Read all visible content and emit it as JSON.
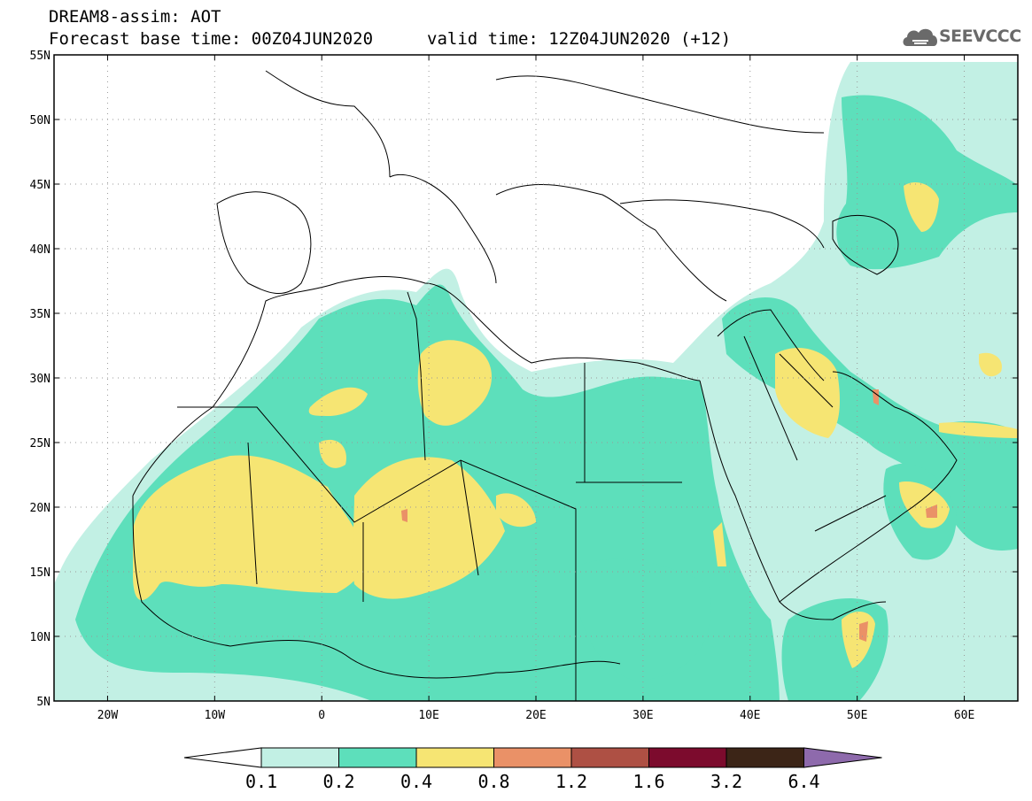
{
  "header": {
    "title": "DREAM8-assim: AOT",
    "base_time": "Forecast base time: 00Z04JUN2020",
    "valid_time": "valid time: 12Z04JUN2020 (+12)"
  },
  "logo": {
    "text": "SEEVCCC",
    "icon": "cloud-icon"
  },
  "map": {
    "lon_range": [
      -25,
      65
    ],
    "lat_range": [
      5,
      55
    ],
    "lat_ticks": [
      {
        "v": 55,
        "label": "55N"
      },
      {
        "v": 50,
        "label": "50N"
      },
      {
        "v": 45,
        "label": "45N"
      },
      {
        "v": 40,
        "label": "40N"
      },
      {
        "v": 35,
        "label": "35N"
      },
      {
        "v": 30,
        "label": "30N"
      },
      {
        "v": 25,
        "label": "25N"
      },
      {
        "v": 20,
        "label": "20N"
      },
      {
        "v": 15,
        "label": "15N"
      },
      {
        "v": 10,
        "label": "10N"
      },
      {
        "v": 5,
        "label": "5N"
      }
    ],
    "lon_ticks": [
      {
        "v": -20,
        "label": "20W"
      },
      {
        "v": -10,
        "label": "10W"
      },
      {
        "v": 0,
        "label": "0"
      },
      {
        "v": 10,
        "label": "10E"
      },
      {
        "v": 20,
        "label": "20E"
      },
      {
        "v": 30,
        "label": "30E"
      },
      {
        "v": 40,
        "label": "40E"
      },
      {
        "v": 50,
        "label": "50E"
      },
      {
        "v": 60,
        "label": "60E"
      }
    ],
    "grid": true
  },
  "colorbar": {
    "levels": [
      "0.1",
      "0.2",
      "0.4",
      "0.8",
      "1.2",
      "1.6",
      "3.2",
      "6.4"
    ],
    "colors": [
      "#ffffff",
      "#c2f0e4",
      "#5ddfbb",
      "#f6e573",
      "#ea9167",
      "#ae5044",
      "#7c0b2d",
      "#3c2517",
      "#8e6aac"
    ]
  }
}
